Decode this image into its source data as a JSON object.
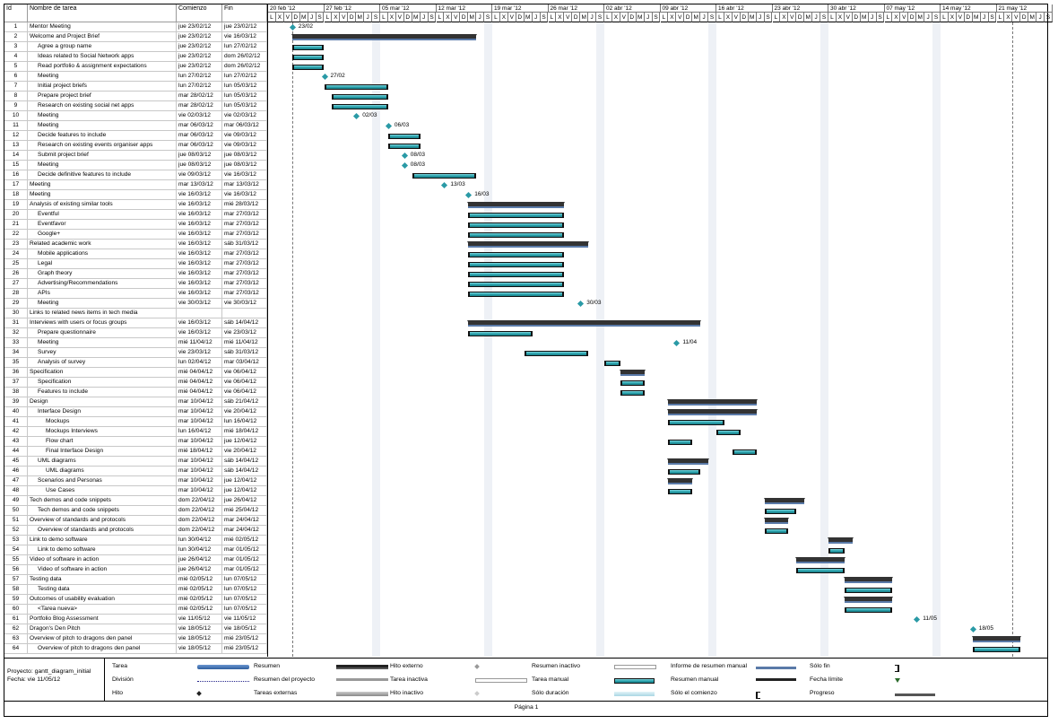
{
  "headers": {
    "id": "Id",
    "name": "Nombre de tarea",
    "start": "Comienzo",
    "end": "Fin"
  },
  "timeline": {
    "weeks": [
      "20 feb '12",
      "27 feb '12",
      "05 mar '12",
      "12 mar '12",
      "19 mar '12",
      "26 mar '12",
      "02 abr '12",
      "09 abr '12",
      "16 abr '12",
      "23 abr '12",
      "30 abr '12",
      "07 may '12",
      "14 may '12",
      "21 may '12"
    ],
    "day_letters": [
      "L",
      "X",
      "V",
      "D",
      "M",
      "J",
      "S"
    ]
  },
  "tasks": [
    {
      "id": "1",
      "name": "Mentor Meeting",
      "start": "jue 23/02/12",
      "end": "jue 23/02/12",
      "indent": 0
    },
    {
      "id": "2",
      "name": "Welcome and Project Brief",
      "start": "jue 23/02/12",
      "end": "vie 16/03/12",
      "indent": 0
    },
    {
      "id": "3",
      "name": "Agree a group name",
      "start": "jue 23/02/12",
      "end": "lun 27/02/12",
      "indent": 1
    },
    {
      "id": "4",
      "name": "Ideas related to Social Network apps",
      "start": "jue 23/02/12",
      "end": "dom 26/02/12",
      "indent": 1
    },
    {
      "id": "5",
      "name": "Read portfolio & assignment expectations",
      "start": "jue 23/02/12",
      "end": "dom 26/02/12",
      "indent": 1
    },
    {
      "id": "6",
      "name": "Meeting",
      "start": "lun 27/02/12",
      "end": "lun 27/02/12",
      "indent": 1
    },
    {
      "id": "7",
      "name": "Initial project briefs",
      "start": "lun 27/02/12",
      "end": "lun 05/03/12",
      "indent": 1
    },
    {
      "id": "8",
      "name": "Prepare project brief",
      "start": "mar 28/02/12",
      "end": "lun 05/03/12",
      "indent": 1
    },
    {
      "id": "9",
      "name": "Research on existing social net apps",
      "start": "mar 28/02/12",
      "end": "lun 05/03/12",
      "indent": 1
    },
    {
      "id": "10",
      "name": "Meeting",
      "start": "vie 02/03/12",
      "end": "vie 02/03/12",
      "indent": 1
    },
    {
      "id": "11",
      "name": "Meeting",
      "start": "mar 06/03/12",
      "end": "mar 06/03/12",
      "indent": 1
    },
    {
      "id": "12",
      "name": "Decide features to include",
      "start": "mar 06/03/12",
      "end": "vie 09/03/12",
      "indent": 1
    },
    {
      "id": "13",
      "name": "Research on existing events organiser apps",
      "start": "mar 06/03/12",
      "end": "vie 09/03/12",
      "indent": 1
    },
    {
      "id": "14",
      "name": "Submit project brief",
      "start": "jue 08/03/12",
      "end": "jue 08/03/12",
      "indent": 1
    },
    {
      "id": "15",
      "name": "Meeting",
      "start": "jue 08/03/12",
      "end": "jue 08/03/12",
      "indent": 1
    },
    {
      "id": "16",
      "name": "Decide definitive features to include",
      "start": "vie 09/03/12",
      "end": "vie 16/03/12",
      "indent": 1
    },
    {
      "id": "17",
      "name": "Meeting",
      "start": "mar 13/03/12",
      "end": "mar 13/03/12",
      "indent": 0
    },
    {
      "id": "18",
      "name": "Meeting",
      "start": "vie 16/03/12",
      "end": "vie 16/03/12",
      "indent": 0
    },
    {
      "id": "19",
      "name": "Analysis of existing similar tools",
      "start": "vie 16/03/12",
      "end": "mié 28/03/12",
      "indent": 0
    },
    {
      "id": "20",
      "name": "Eventful",
      "start": "vie 16/03/12",
      "end": "mar 27/03/12",
      "indent": 1
    },
    {
      "id": "21",
      "name": "Eventfavor",
      "start": "vie 16/03/12",
      "end": "mar 27/03/12",
      "indent": 1
    },
    {
      "id": "22",
      "name": "Google+",
      "start": "vie 16/03/12",
      "end": "mar 27/03/12",
      "indent": 1
    },
    {
      "id": "23",
      "name": "Related academic work",
      "start": "vie 16/03/12",
      "end": "sáb 31/03/12",
      "indent": 0
    },
    {
      "id": "24",
      "name": "Mobile applications",
      "start": "vie 16/03/12",
      "end": "mar 27/03/12",
      "indent": 1
    },
    {
      "id": "25",
      "name": "Legal",
      "start": "vie 16/03/12",
      "end": "mar 27/03/12",
      "indent": 1
    },
    {
      "id": "26",
      "name": "Graph theory",
      "start": "vie 16/03/12",
      "end": "mar 27/03/12",
      "indent": 1
    },
    {
      "id": "27",
      "name": "Advertising/Recommendations",
      "start": "vie 16/03/12",
      "end": "mar 27/03/12",
      "indent": 1
    },
    {
      "id": "28",
      "name": "APIs",
      "start": "vie 16/03/12",
      "end": "mar 27/03/12",
      "indent": 1
    },
    {
      "id": "29",
      "name": "Meeting",
      "start": "vie 30/03/12",
      "end": "vie 30/03/12",
      "indent": 1
    },
    {
      "id": "30",
      "name": "Links to related news items in tech media",
      "start": "",
      "end": "",
      "indent": 0
    },
    {
      "id": "31",
      "name": "Interviews with users or focus groups",
      "start": "vie 16/03/12",
      "end": "sáb 14/04/12",
      "indent": 0
    },
    {
      "id": "32",
      "name": "Prepare questionnaire",
      "start": "vie 16/03/12",
      "end": "vie 23/03/12",
      "indent": 1
    },
    {
      "id": "33",
      "name": "Meeting",
      "start": "mié 11/04/12",
      "end": "mié 11/04/12",
      "indent": 1
    },
    {
      "id": "34",
      "name": "Survey",
      "start": "vie 23/03/12",
      "end": "sáb 31/03/12",
      "indent": 1
    },
    {
      "id": "35",
      "name": "Analysis of survey",
      "start": "lun 02/04/12",
      "end": "mar 03/04/12",
      "indent": 1
    },
    {
      "id": "36",
      "name": "Specification",
      "start": "mié 04/04/12",
      "end": "vie 06/04/12",
      "indent": 0
    },
    {
      "id": "37",
      "name": "Specification",
      "start": "mié 04/04/12",
      "end": "vie 06/04/12",
      "indent": 1
    },
    {
      "id": "38",
      "name": "Features to include",
      "start": "mié 04/04/12",
      "end": "vie 06/04/12",
      "indent": 1
    },
    {
      "id": "39",
      "name": "Design",
      "start": "mar 10/04/12",
      "end": "sáb 21/04/12",
      "indent": 0
    },
    {
      "id": "40",
      "name": "Interface Design",
      "start": "mar 10/04/12",
      "end": "vie 20/04/12",
      "indent": 1
    },
    {
      "id": "41",
      "name": "Mockups",
      "start": "mar 10/04/12",
      "end": "lun 16/04/12",
      "indent": 2
    },
    {
      "id": "42",
      "name": "Mockups Interviews",
      "start": "lun 16/04/12",
      "end": "mié 18/04/12",
      "indent": 2
    },
    {
      "id": "43",
      "name": "Flow chart",
      "start": "mar 10/04/12",
      "end": "jue 12/04/12",
      "indent": 2
    },
    {
      "id": "44",
      "name": "Final Interface Design",
      "start": "mié 18/04/12",
      "end": "vie 20/04/12",
      "indent": 2
    },
    {
      "id": "45",
      "name": "UML diagrams",
      "start": "mar 10/04/12",
      "end": "sáb 14/04/12",
      "indent": 1
    },
    {
      "id": "46",
      "name": "UML diagrams",
      "start": "mar 10/04/12",
      "end": "sáb 14/04/12",
      "indent": 2
    },
    {
      "id": "47",
      "name": "Scenarios and Personas",
      "start": "mar 10/04/12",
      "end": "jue 12/04/12",
      "indent": 1
    },
    {
      "id": "48",
      "name": "Use Cases",
      "start": "mar 10/04/12",
      "end": "jue 12/04/12",
      "indent": 2
    },
    {
      "id": "49",
      "name": "Tech demos and code snippets",
      "start": "dom 22/04/12",
      "end": "jue 26/04/12",
      "indent": 0
    },
    {
      "id": "50",
      "name": "Tech demos and code snippets",
      "start": "dom 22/04/12",
      "end": "mié 25/04/12",
      "indent": 1
    },
    {
      "id": "51",
      "name": "Overview of standards and protocols",
      "start": "dom 22/04/12",
      "end": "mar 24/04/12",
      "indent": 0
    },
    {
      "id": "52",
      "name": "Overview of standards and protocols",
      "start": "dom 22/04/12",
      "end": "mar 24/04/12",
      "indent": 1
    },
    {
      "id": "53",
      "name": "Link to demo software",
      "start": "lun 30/04/12",
      "end": "mié 02/05/12",
      "indent": 0
    },
    {
      "id": "54",
      "name": "Link to demo software",
      "start": "lun 30/04/12",
      "end": "mar 01/05/12",
      "indent": 1
    },
    {
      "id": "55",
      "name": "Video of software in action",
      "start": "jue 26/04/12",
      "end": "mar 01/05/12",
      "indent": 0
    },
    {
      "id": "56",
      "name": "Video of software in action",
      "start": "jue 26/04/12",
      "end": "mar 01/05/12",
      "indent": 1
    },
    {
      "id": "57",
      "name": "Testing data",
      "start": "mié 02/05/12",
      "end": "lun 07/05/12",
      "indent": 0
    },
    {
      "id": "58",
      "name": "Testing data",
      "start": "mié 02/05/12",
      "end": "lun 07/05/12",
      "indent": 1
    },
    {
      "id": "59",
      "name": "Outcomes of usability evaluation",
      "start": "mié 02/05/12",
      "end": "lun 07/05/12",
      "indent": 0
    },
    {
      "id": "60",
      "name": "<Tarea nueva>",
      "start": "mié 02/05/12",
      "end": "lun 07/05/12",
      "indent": 1
    },
    {
      "id": "61",
      "name": "Portfolio Blog Assessment",
      "start": "vie 11/05/12",
      "end": "vie 11/05/12",
      "indent": 0
    },
    {
      "id": "62",
      "name": "Dragon's Den Pitch",
      "start": "vie 18/05/12",
      "end": "vie 18/05/12",
      "indent": 0
    },
    {
      "id": "63",
      "name": "Overview of pitch to dragons den panel",
      "start": "vie 18/05/12",
      "end": "mié 23/05/12",
      "indent": 0
    },
    {
      "id": "64",
      "name": "Overview of pitch to dragons den panel",
      "start": "vie 18/05/12",
      "end": "mié 23/05/12",
      "indent": 1
    }
  ],
  "chart_data": {
    "type": "gantt",
    "timeline_start": "2012-02-20",
    "timeline_end": "2012-05-27",
    "status_date": "2012-05-23",
    "bars": [
      {
        "row": 1,
        "kind": "milestone",
        "start": "2012-02-23",
        "label": "23/02"
      },
      {
        "row": 2,
        "kind": "summary",
        "start": "2012-02-23",
        "end": "2012-03-17"
      },
      {
        "row": 3,
        "kind": "task",
        "start": "2012-02-23",
        "end": "2012-02-27"
      },
      {
        "row": 4,
        "kind": "task",
        "start": "2012-02-23",
        "end": "2012-02-27"
      },
      {
        "row": 5,
        "kind": "task",
        "start": "2012-02-23",
        "end": "2012-02-27"
      },
      {
        "row": 6,
        "kind": "milestone",
        "start": "2012-02-27",
        "label": "27/02"
      },
      {
        "row": 7,
        "kind": "task",
        "start": "2012-02-27",
        "end": "2012-03-06"
      },
      {
        "row": 8,
        "kind": "task",
        "start": "2012-02-28",
        "end": "2012-03-06"
      },
      {
        "row": 9,
        "kind": "task",
        "start": "2012-02-28",
        "end": "2012-03-06"
      },
      {
        "row": 10,
        "kind": "milestone",
        "start": "2012-03-02",
        "label": "02/03"
      },
      {
        "row": 11,
        "kind": "milestone",
        "start": "2012-03-06",
        "label": "06/03"
      },
      {
        "row": 12,
        "kind": "task",
        "start": "2012-03-06",
        "end": "2012-03-10"
      },
      {
        "row": 13,
        "kind": "task",
        "start": "2012-03-06",
        "end": "2012-03-10"
      },
      {
        "row": 14,
        "kind": "milestone",
        "start": "2012-03-08",
        "label": "08/03"
      },
      {
        "row": 15,
        "kind": "milestone",
        "start": "2012-03-08",
        "label": "08/03"
      },
      {
        "row": 16,
        "kind": "task",
        "start": "2012-03-09",
        "end": "2012-03-17"
      },
      {
        "row": 17,
        "kind": "milestone",
        "start": "2012-03-13",
        "label": "13/03"
      },
      {
        "row": 18,
        "kind": "milestone",
        "start": "2012-03-16",
        "label": "16/03"
      },
      {
        "row": 19,
        "kind": "summary",
        "start": "2012-03-16",
        "end": "2012-03-28"
      },
      {
        "row": 20,
        "kind": "task",
        "start": "2012-03-16",
        "end": "2012-03-28"
      },
      {
        "row": 21,
        "kind": "task",
        "start": "2012-03-16",
        "end": "2012-03-28"
      },
      {
        "row": 22,
        "kind": "task",
        "start": "2012-03-16",
        "end": "2012-03-28"
      },
      {
        "row": 23,
        "kind": "summary",
        "start": "2012-03-16",
        "end": "2012-03-31"
      },
      {
        "row": 24,
        "kind": "task",
        "start": "2012-03-16",
        "end": "2012-03-28"
      },
      {
        "row": 25,
        "kind": "task",
        "start": "2012-03-16",
        "end": "2012-03-28"
      },
      {
        "row": 26,
        "kind": "task",
        "start": "2012-03-16",
        "end": "2012-03-28"
      },
      {
        "row": 27,
        "kind": "task",
        "start": "2012-03-16",
        "end": "2012-03-28"
      },
      {
        "row": 28,
        "kind": "task",
        "start": "2012-03-16",
        "end": "2012-03-28"
      },
      {
        "row": 29,
        "kind": "milestone",
        "start": "2012-03-30",
        "label": "30/03"
      },
      {
        "row": 31,
        "kind": "summary",
        "start": "2012-03-16",
        "end": "2012-04-14"
      },
      {
        "row": 32,
        "kind": "task",
        "start": "2012-03-16",
        "end": "2012-03-24"
      },
      {
        "row": 33,
        "kind": "milestone",
        "start": "2012-04-11",
        "label": "11/04"
      },
      {
        "row": 34,
        "kind": "task",
        "start": "2012-03-23",
        "end": "2012-03-31"
      },
      {
        "row": 35,
        "kind": "task",
        "start": "2012-04-02",
        "end": "2012-04-04"
      },
      {
        "row": 36,
        "kind": "summary",
        "start": "2012-04-04",
        "end": "2012-04-07"
      },
      {
        "row": 37,
        "kind": "task",
        "start": "2012-04-04",
        "end": "2012-04-07"
      },
      {
        "row": 38,
        "kind": "task",
        "start": "2012-04-04",
        "end": "2012-04-07"
      },
      {
        "row": 39,
        "kind": "summary",
        "start": "2012-04-10",
        "end": "2012-04-21"
      },
      {
        "row": 40,
        "kind": "summary",
        "start": "2012-04-10",
        "end": "2012-04-21"
      },
      {
        "row": 41,
        "kind": "task",
        "start": "2012-04-10",
        "end": "2012-04-17"
      },
      {
        "row": 42,
        "kind": "task",
        "start": "2012-04-16",
        "end": "2012-04-19"
      },
      {
        "row": 43,
        "kind": "task",
        "start": "2012-04-10",
        "end": "2012-04-13"
      },
      {
        "row": 44,
        "kind": "task",
        "start": "2012-04-18",
        "end": "2012-04-21"
      },
      {
        "row": 45,
        "kind": "summary",
        "start": "2012-04-10",
        "end": "2012-04-15"
      },
      {
        "row": 46,
        "kind": "task",
        "start": "2012-04-10",
        "end": "2012-04-14"
      },
      {
        "row": 47,
        "kind": "summary",
        "start": "2012-04-10",
        "end": "2012-04-13"
      },
      {
        "row": 48,
        "kind": "task",
        "start": "2012-04-10",
        "end": "2012-04-13"
      },
      {
        "row": 49,
        "kind": "summary",
        "start": "2012-04-22",
        "end": "2012-04-27"
      },
      {
        "row": 50,
        "kind": "task",
        "start": "2012-04-22",
        "end": "2012-04-26"
      },
      {
        "row": 51,
        "kind": "summary",
        "start": "2012-04-22",
        "end": "2012-04-25"
      },
      {
        "row": 52,
        "kind": "task",
        "start": "2012-04-22",
        "end": "2012-04-25"
      },
      {
        "row": 53,
        "kind": "summary",
        "start": "2012-04-30",
        "end": "2012-05-03"
      },
      {
        "row": 54,
        "kind": "task",
        "start": "2012-04-30",
        "end": "2012-05-02"
      },
      {
        "row": 55,
        "kind": "summary",
        "start": "2012-04-26",
        "end": "2012-05-02"
      },
      {
        "row": 56,
        "kind": "task",
        "start": "2012-04-26",
        "end": "2012-05-02"
      },
      {
        "row": 57,
        "kind": "summary",
        "start": "2012-05-02",
        "end": "2012-05-08"
      },
      {
        "row": 58,
        "kind": "task",
        "start": "2012-05-02",
        "end": "2012-05-08"
      },
      {
        "row": 59,
        "kind": "summary",
        "start": "2012-05-02",
        "end": "2012-05-08"
      },
      {
        "row": 60,
        "kind": "task",
        "start": "2012-05-02",
        "end": "2012-05-08"
      },
      {
        "row": 61,
        "kind": "milestone",
        "start": "2012-05-11",
        "label": "11/05"
      },
      {
        "row": 62,
        "kind": "milestone",
        "start": "2012-05-18",
        "label": "18/05"
      },
      {
        "row": 63,
        "kind": "summary",
        "start": "2012-05-18",
        "end": "2012-05-24"
      },
      {
        "row": 64,
        "kind": "task",
        "start": "2012-05-18",
        "end": "2012-05-24"
      }
    ]
  },
  "legend": {
    "project": "Proyecto: gantt_diagram_initial",
    "date": "Fecha: vie 11/05/12",
    "items": [
      {
        "label": "Tarea",
        "sym": "task-blue"
      },
      {
        "label": "División",
        "sym": "split"
      },
      {
        "label": "Hito",
        "sym": "milestone"
      },
      {
        "label": "Resumen",
        "sym": "summary"
      },
      {
        "label": "Resumen del proyecto",
        "sym": "project-summary"
      },
      {
        "label": "Tareas externas",
        "sym": "external"
      },
      {
        "label": "Hito externo",
        "sym": "ext-milestone"
      },
      {
        "label": "Tarea inactiva",
        "sym": "inactive-task"
      },
      {
        "label": "Hito inactivo",
        "sym": "inactive-milestone"
      },
      {
        "label": "Resumen inactivo",
        "sym": "inactive-summary"
      },
      {
        "label": "Tarea manual",
        "sym": "manual-task"
      },
      {
        "label": "Sólo duración",
        "sym": "duration-only"
      },
      {
        "label": "Informe de resumen manual",
        "sym": "manual-summary-rollup"
      },
      {
        "label": "Resumen manual",
        "sym": "manual-summary"
      },
      {
        "label": "Sólo el comienzo",
        "sym": "start-only"
      },
      {
        "label": "Sólo fin",
        "sym": "finish-only"
      },
      {
        "label": "Fecha límite",
        "sym": "deadline"
      },
      {
        "label": "Progreso",
        "sym": "progress"
      }
    ]
  },
  "footer": {
    "page": "Página 1"
  }
}
